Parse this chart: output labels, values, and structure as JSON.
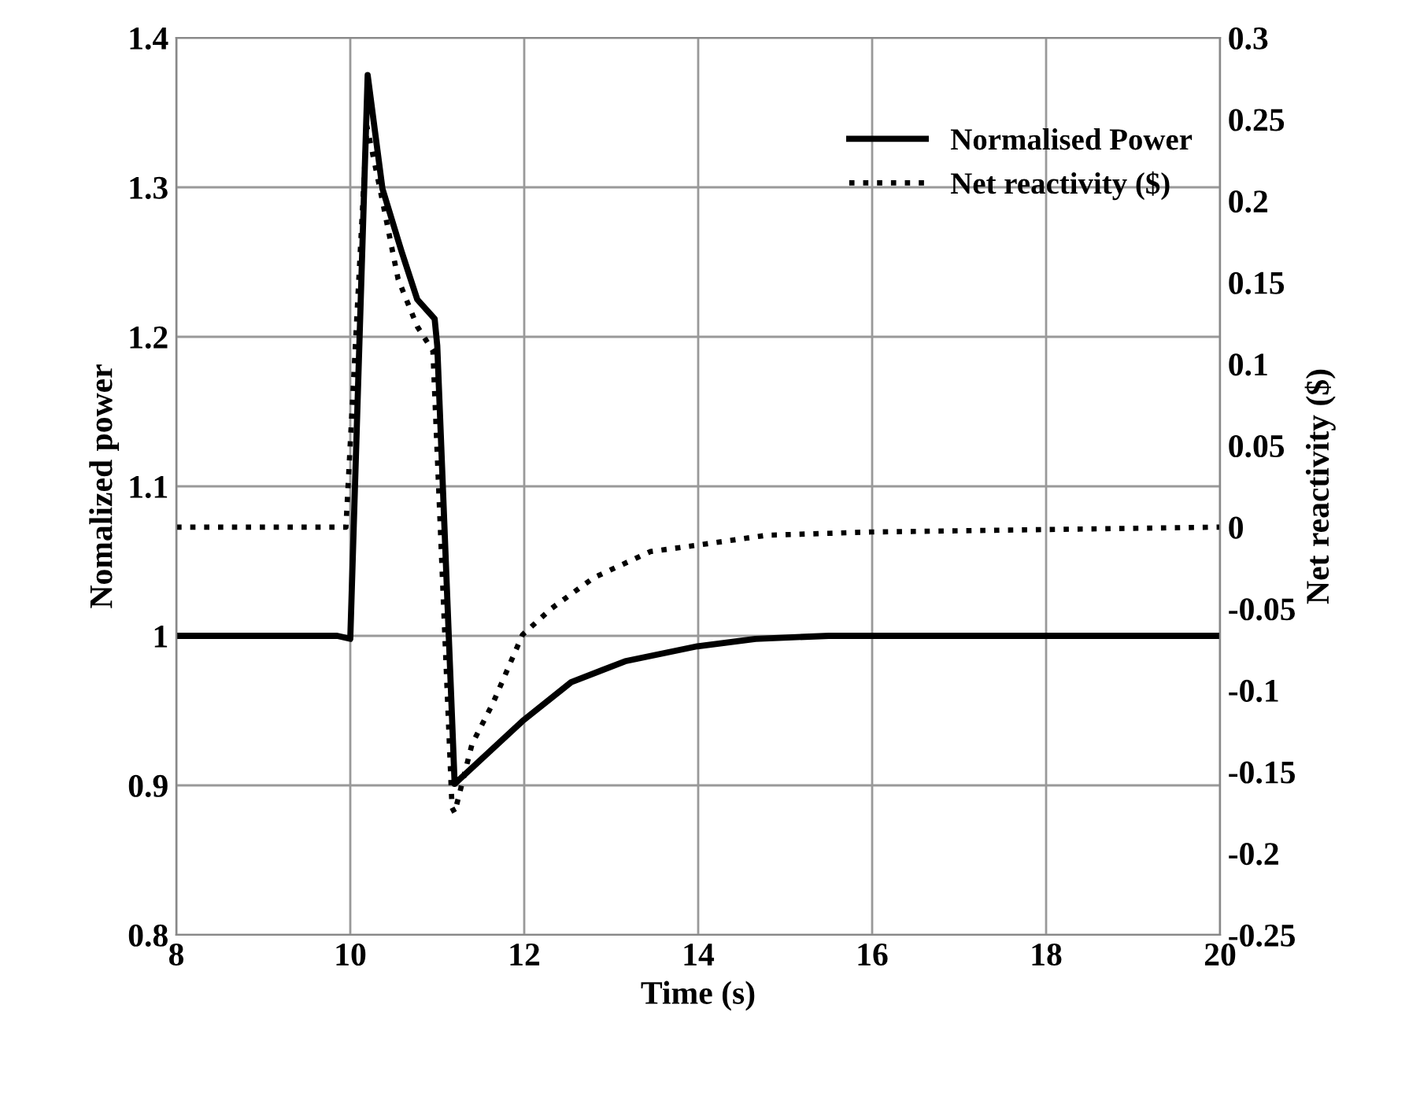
{
  "chart_data": {
    "type": "line",
    "xlabel": "Time (s)",
    "ylabel": "Nomalized power",
    "y2label": "Net reactivity ($)",
    "xlim": [
      8,
      20
    ],
    "xticks": [
      8,
      10,
      12,
      14,
      16,
      18,
      20
    ],
    "ylim": [
      0.8,
      1.4
    ],
    "yticks": [
      0.8,
      0.9,
      1,
      1.1,
      1.2,
      1.3,
      1.4
    ],
    "y2lim": [
      -0.25,
      0.3
    ],
    "y2ticks": [
      -0.25,
      -0.2,
      -0.15,
      -0.1,
      -0.05,
      0,
      0.05,
      0.1,
      0.15,
      0.2,
      0.25,
      0.3
    ],
    "grid": true,
    "legend": "top right",
    "marker": "none",
    "series": [
      {
        "name": "Normalised Power",
        "color": "#000000",
        "line_style": "solid",
        "x": [
          8,
          9.85,
          10.0,
          10.2,
          10.37,
          10.59,
          10.77,
          10.97,
          11.0,
          11.2,
          11.98,
          12.54,
          13.16,
          13.99,
          14.66,
          15.5,
          20
        ],
        "values": [
          1.0,
          1.0,
          0.998,
          1.375,
          1.299,
          1.257,
          1.225,
          1.212,
          1.194,
          0.901,
          0.943,
          0.969,
          0.983,
          0.993,
          0.998,
          1.0,
          1.0
        ]
      },
      {
        "name": "Net reactivity ($)",
        "color": "#000000",
        "line_style": "dotted",
        "axis": "y2",
        "x": [
          8,
          9.95,
          10.19,
          10.37,
          10.55,
          10.77,
          10.95,
          11.17,
          11.2,
          11.4,
          11.64,
          11.98,
          12.31,
          12.8,
          13.45,
          14.0,
          14.79,
          15.98,
          20
        ],
        "values": [
          0,
          0,
          0.246,
          0.2,
          0.152,
          0.123,
          0.108,
          -0.172,
          -0.175,
          -0.133,
          -0.108,
          -0.066,
          -0.05,
          -0.031,
          -0.015,
          -0.011,
          -0.005,
          -0.003,
          0
        ]
      }
    ]
  }
}
